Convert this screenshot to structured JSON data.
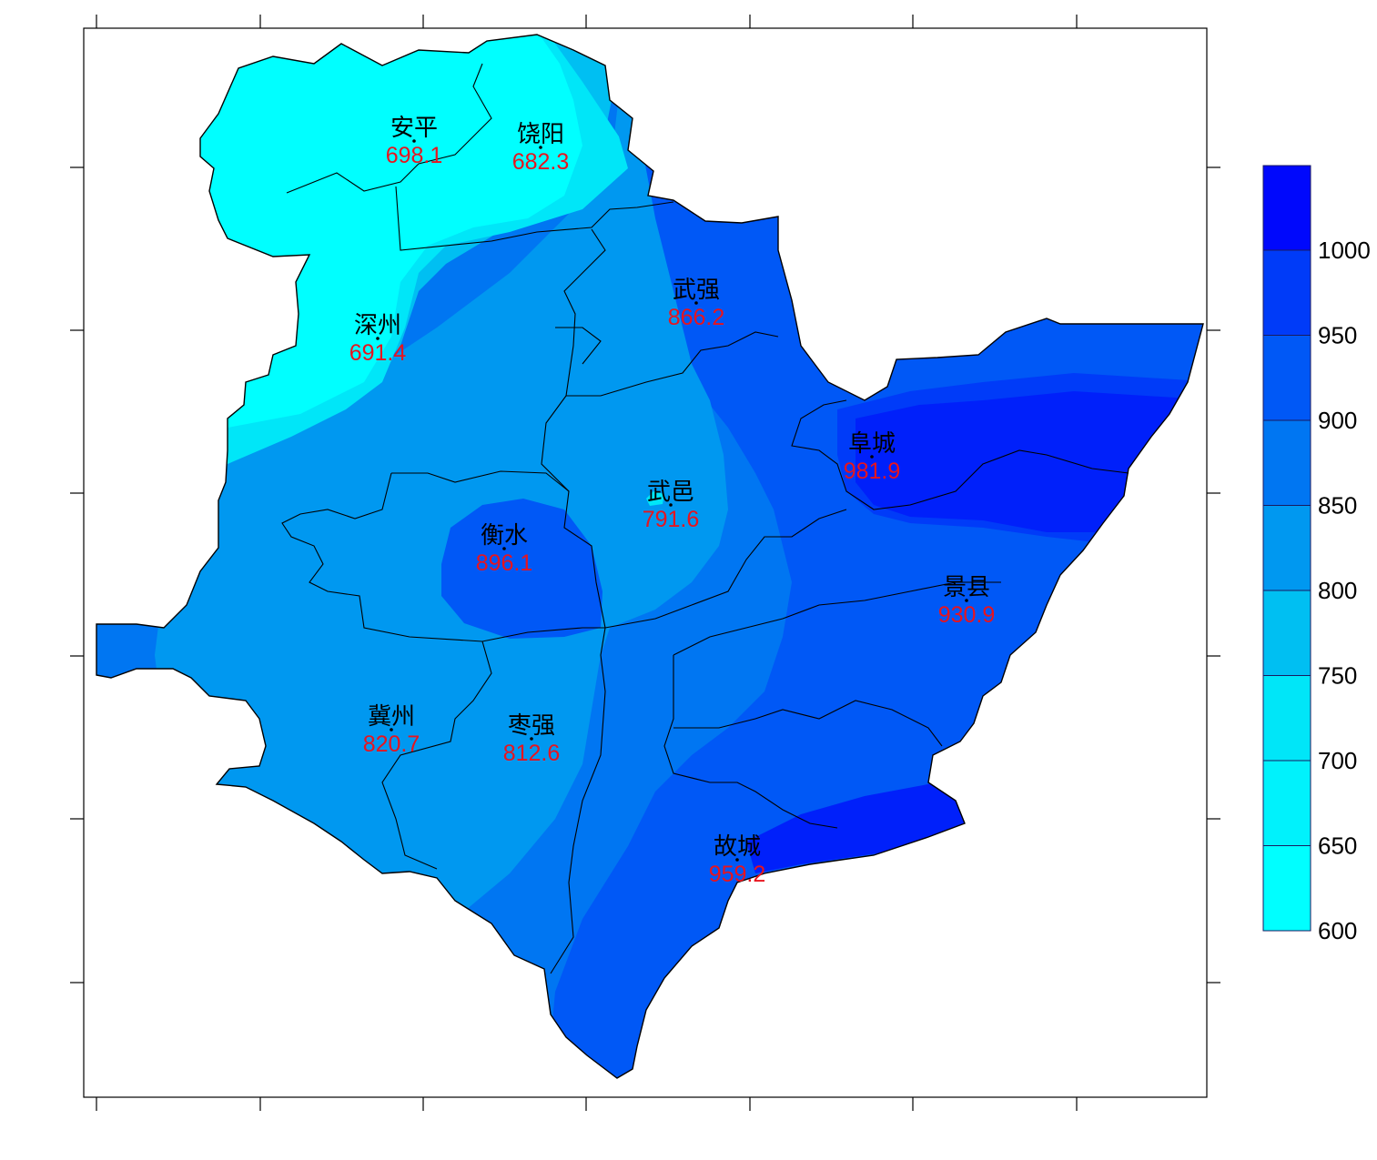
{
  "map": {
    "stations": [
      {
        "name": "安平",
        "value": "698.1"
      },
      {
        "name": "饶阳",
        "value": "682.3"
      },
      {
        "name": "深州",
        "value": "691.4"
      },
      {
        "name": "武强",
        "value": "866.2"
      },
      {
        "name": "阜城",
        "value": "981.9"
      },
      {
        "name": "武邑",
        "value": "791.6"
      },
      {
        "name": "衡水",
        "value": "896.1"
      },
      {
        "name": "景县",
        "value": "930.9"
      },
      {
        "name": "冀州",
        "value": "820.7"
      },
      {
        "name": "枣强",
        "value": "812.6"
      },
      {
        "name": "故城",
        "value": "959.2"
      }
    ]
  },
  "legend": {
    "levels": [
      {
        "label": "600",
        "color": "#00ffff"
      },
      {
        "label": "650",
        "color": "#00f2fc"
      },
      {
        "label": "700",
        "color": "#00e6f8"
      },
      {
        "label": "750",
        "color": "#00bff2"
      },
      {
        "label": "800",
        "color": "#0098f0"
      },
      {
        "label": "850",
        "color": "#0076f2"
      },
      {
        "label": "900",
        "color": "#0058f6"
      },
      {
        "label": "950",
        "color": "#003bf8"
      },
      {
        "label": "1000",
        "color": "#0020fa"
      }
    ],
    "top_color": "#0008fc"
  }
}
